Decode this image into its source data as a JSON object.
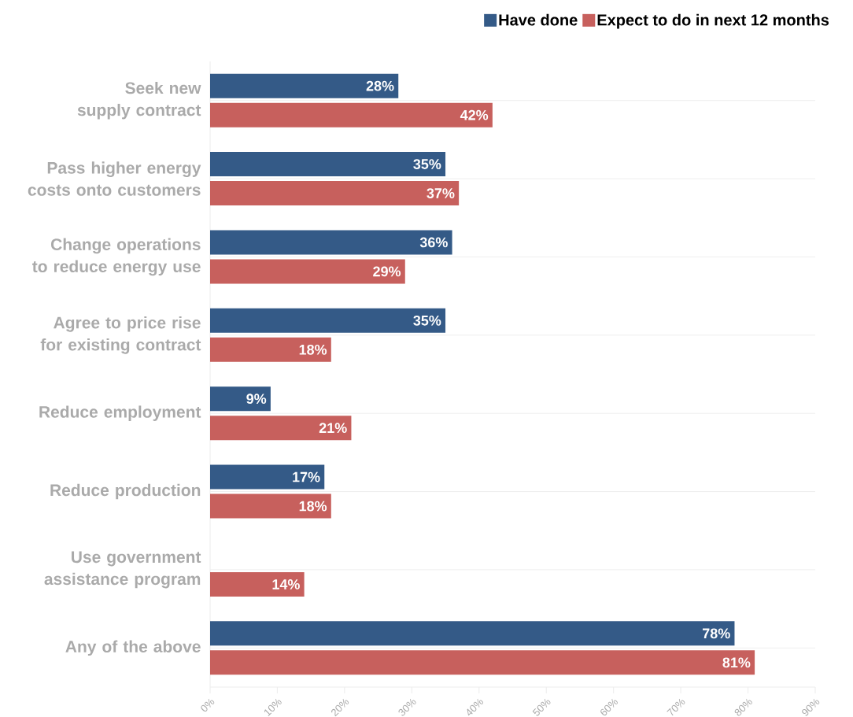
{
  "chart_data": {
    "type": "bar",
    "orientation": "horizontal",
    "categories": [
      "Seek new supply contract",
      "Pass higher energy costs onto customers",
      "Change operations to reduce energy use",
      "Agree to price rise for existing contract",
      "Reduce employment",
      "Reduce production",
      "Use government assistance program",
      "Any of the above"
    ],
    "series": [
      {
        "name": "Have done",
        "color": "#345a87",
        "values": [
          28,
          35,
          36,
          35,
          9,
          17,
          null,
          78
        ],
        "value_labels": [
          "28%",
          "35%",
          "36%",
          "35%",
          "9%",
          "17%",
          null,
          "78%"
        ]
      },
      {
        "name": "Expect to do in next 12 months",
        "color": "#c7605d",
        "values": [
          42,
          37,
          29,
          18,
          21,
          18,
          14,
          81
        ],
        "value_labels": [
          "42%",
          "37%",
          "29%",
          "18%",
          "21%",
          "18%",
          "14%",
          "81%"
        ]
      }
    ],
    "xlim": [
      0,
      90
    ],
    "xticks": [
      {
        "value": 0,
        "label": "0%"
      },
      {
        "value": 10,
        "label": "10%"
      },
      {
        "value": 20,
        "label": "20%"
      },
      {
        "value": 30,
        "label": "30%"
      },
      {
        "value": 40,
        "label": "40%"
      },
      {
        "value": 50,
        "label": "50%"
      },
      {
        "value": 60,
        "label": "60%"
      },
      {
        "value": 70,
        "label": "70%"
      },
      {
        "value": 80,
        "label": "80%"
      },
      {
        "value": 90,
        "label": "90%"
      }
    ],
    "grid": "y",
    "legend": "top right"
  }
}
